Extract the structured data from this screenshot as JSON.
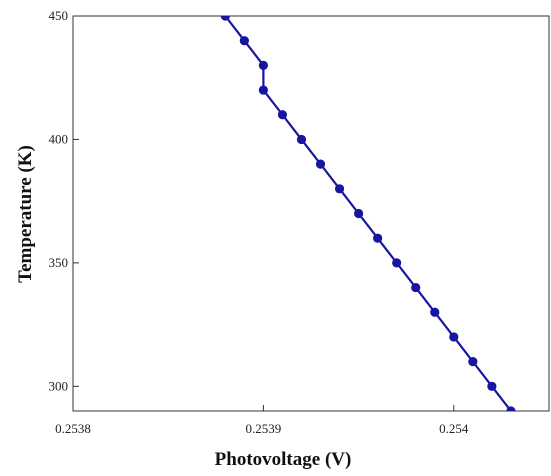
{
  "chart_data": {
    "type": "line",
    "title": "",
    "xlabel": "Photovoltage (V)",
    "ylabel": "Temperature (K)",
    "xlim": [
      0.2538,
      0.25405
    ],
    "ylim": [
      290,
      450
    ],
    "xticks": [
      0.2538,
      0.2539,
      0.254
    ],
    "xtick_labels": [
      "0.2538",
      "0.2539",
      "0.254"
    ],
    "yticks": [
      300,
      350,
      400,
      450
    ],
    "ytick_labels": [
      "300",
      "350",
      "400",
      "450"
    ],
    "grid": false,
    "legend": "none",
    "series": [
      {
        "color": "#1616a0",
        "marker": "circle",
        "x": [
          0.25388,
          0.25389,
          0.2539,
          0.2539,
          0.25391,
          0.25392,
          0.25393,
          0.25394,
          0.25395,
          0.25396,
          0.25397,
          0.25398,
          0.25399,
          0.254,
          0.25401,
          0.25402,
          0.25403
        ],
        "y": [
          450,
          440,
          430,
          420,
          410,
          400,
          390,
          380,
          370,
          360,
          350,
          340,
          330,
          320,
          310,
          300,
          290
        ]
      }
    ]
  }
}
